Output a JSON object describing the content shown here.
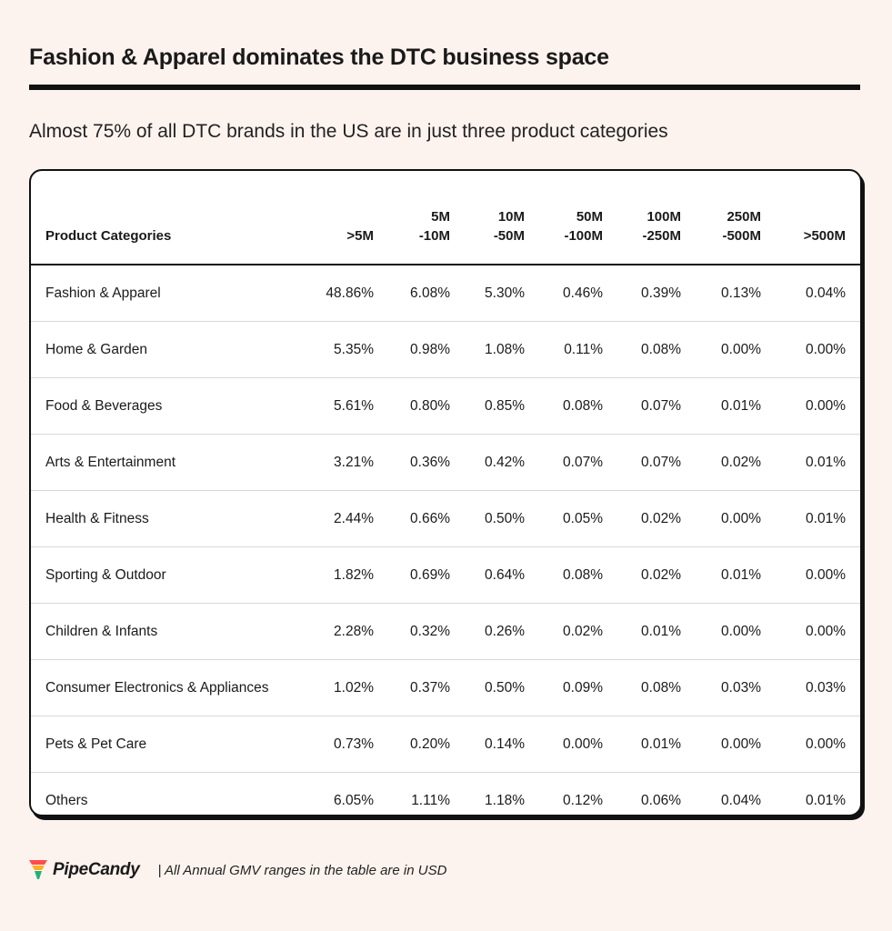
{
  "title": "Fashion & Apparel dominates the DTC business space",
  "subtitle": "Almost 75% of all DTC brands in the US are in just three product categories",
  "brand": {
    "name": "PipeCandy",
    "icon": "pipecandy-logo-icon"
  },
  "footnote": "| All Annual GMV ranges in the table are in USD",
  "chart_data": {
    "type": "table",
    "columns": [
      [
        "Product Categories"
      ],
      [
        ">5M"
      ],
      [
        "5M",
        "-10M"
      ],
      [
        "10M",
        "-50M"
      ],
      [
        "50M",
        "-100M"
      ],
      [
        "100M",
        "-250M"
      ],
      [
        "250M",
        "-500M"
      ],
      [
        ">500M"
      ]
    ],
    "rows": [
      [
        "Fashion & Apparel",
        "48.86%",
        "6.08%",
        "5.30%",
        "0.46%",
        "0.39%",
        "0.13%",
        "0.04%"
      ],
      [
        "Home & Garden",
        "5.35%",
        "0.98%",
        "1.08%",
        "0.11%",
        "0.08%",
        "0.00%",
        "0.00%"
      ],
      [
        "Food & Beverages",
        "5.61%",
        "0.80%",
        "0.85%",
        "0.08%",
        "0.07%",
        "0.01%",
        "0.00%"
      ],
      [
        "Arts & Entertainment",
        "3.21%",
        "0.36%",
        "0.42%",
        "0.07%",
        "0.07%",
        "0.02%",
        "0.01%"
      ],
      [
        "Health & Fitness",
        "2.44%",
        "0.66%",
        "0.50%",
        "0.05%",
        "0.02%",
        "0.00%",
        "0.01%"
      ],
      [
        "Sporting & Outdoor",
        "1.82%",
        "0.69%",
        "0.64%",
        "0.08%",
        "0.02%",
        "0.01%",
        "0.00%"
      ],
      [
        "Children & Infants",
        "2.28%",
        "0.32%",
        "0.26%",
        "0.02%",
        "0.01%",
        "0.00%",
        "0.00%"
      ],
      [
        "Consumer Electronics & Appliances",
        "1.02%",
        "0.37%",
        "0.50%",
        "0.09%",
        "0.08%",
        "0.03%",
        "0.03%"
      ],
      [
        "Pets & Pet Care",
        "0.73%",
        "0.20%",
        "0.14%",
        "0.00%",
        "0.01%",
        "0.00%",
        "0.00%"
      ],
      [
        "Others",
        "6.05%",
        "1.11%",
        "1.18%",
        "0.12%",
        "0.06%",
        "0.04%",
        "0.01%"
      ]
    ]
  }
}
